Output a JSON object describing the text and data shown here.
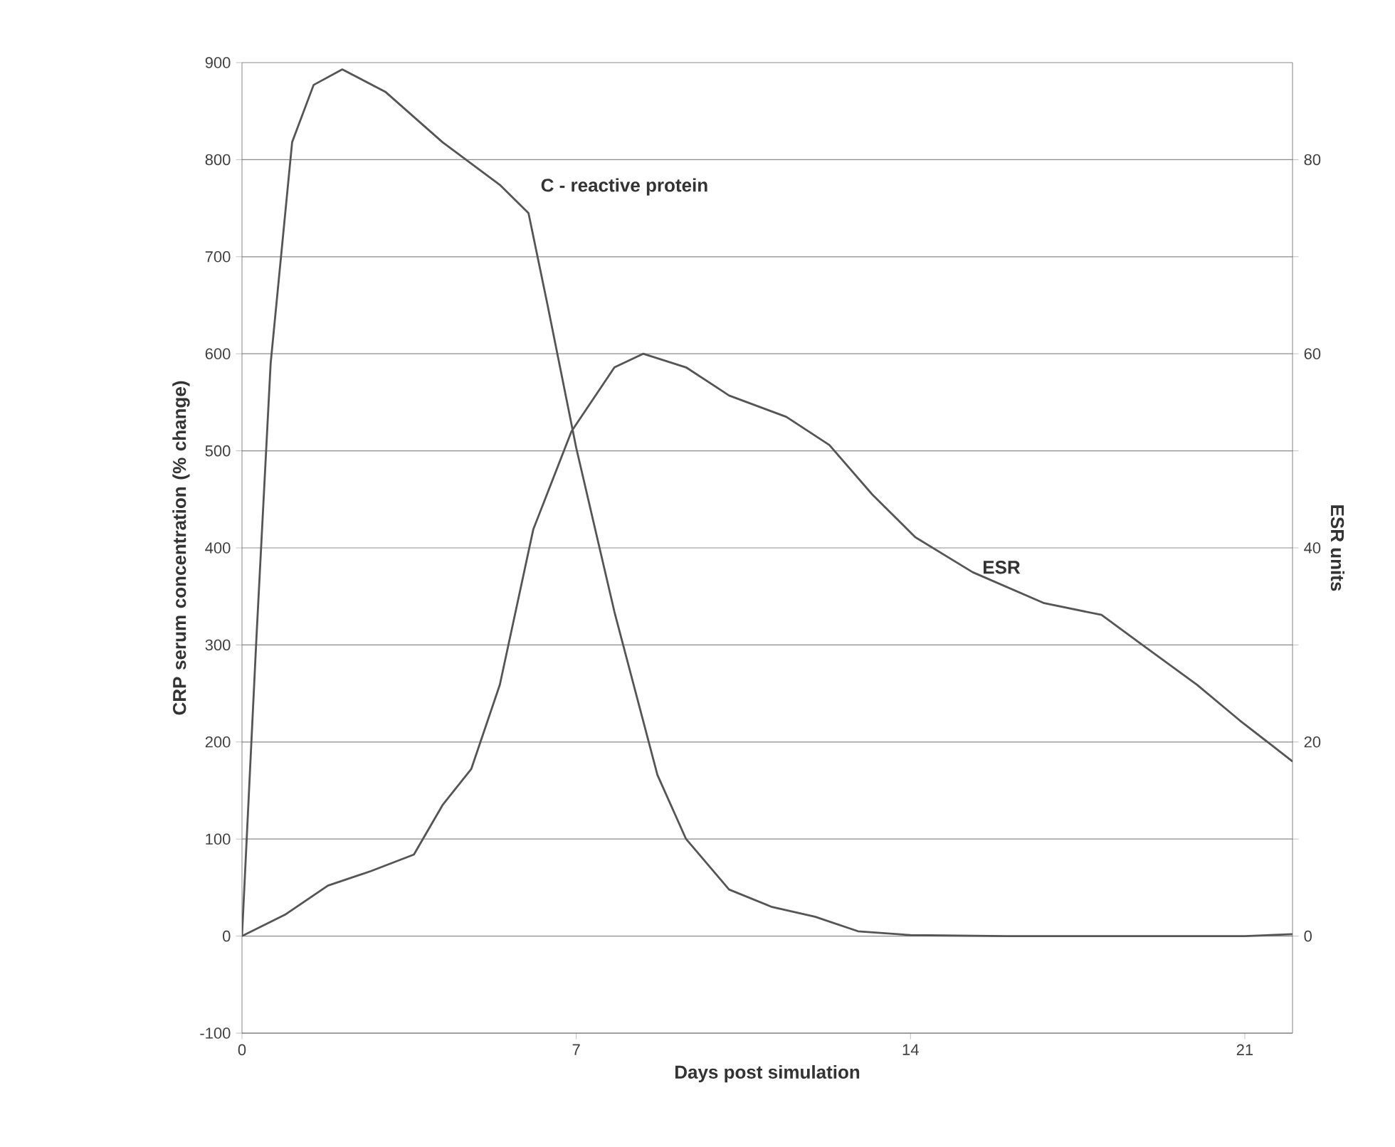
{
  "chart_data": {
    "type": "line",
    "xlabel": "Days post simulation",
    "ylabel": "CRP serum concentration (% change)",
    "y2label": "ESR units",
    "xlim": [
      0,
      22
    ],
    "xticks": [
      0,
      7,
      14,
      21
    ],
    "ylim": [
      -100,
      900
    ],
    "yticks": [
      -100,
      0,
      100,
      200,
      300,
      400,
      500,
      600,
      700,
      800,
      900
    ],
    "y2lim": [
      -10,
      90
    ],
    "y2ticks": [
      0,
      {
        "value": 10,
        "label": null
      },
      20,
      {
        "value": 30,
        "label": null
      },
      40,
      {
        "value": 50,
        "label": null
      },
      60,
      {
        "value": 70,
        "label": null
      },
      80
    ],
    "grid": "y",
    "marker": "none",
    "line_style": "solid",
    "series": [
      {
        "name": "C - reactive protein",
        "color": "#555555",
        "axis": "y",
        "x": [
          0,
          0.3,
          0.6,
          1.05,
          1.5,
          2.1,
          3.0,
          4.2,
          5.4,
          6.0,
          6.4,
          7.0,
          7.8,
          8.7,
          9.3,
          10.2,
          11.1,
          12.0,
          12.9,
          14.0,
          16.0,
          18.0,
          21.0,
          22.0
        ],
        "values": [
          0,
          305,
          590,
          818,
          877,
          893,
          870,
          818,
          774,
          745,
          650,
          503,
          334,
          166,
          100,
          48,
          30,
          20,
          5,
          1,
          0,
          0,
          0,
          2
        ]
      },
      {
        "name": "ESR",
        "color": "#555555",
        "axis": "y2",
        "x": [
          0,
          0.9,
          1.8,
          2.7,
          3.6,
          4.2,
          4.8,
          5.4,
          6.1,
          6.9,
          7.8,
          8.4,
          9.3,
          10.2,
          11.4,
          12.3,
          13.2,
          14.1,
          15.3,
          16.8,
          18.0,
          18.8,
          20.0,
          20.9,
          22.0
        ],
        "values": [
          0,
          2.2,
          5.2,
          6.7,
          8.4,
          13.5,
          17.2,
          25.9,
          41.9,
          52,
          58.6,
          60,
          58.6,
          55.7,
          53.5,
          50.6,
          45.5,
          41.1,
          37.5,
          34.3,
          33.1,
          30.2,
          25.9,
          22.2,
          18
        ]
      }
    ]
  }
}
